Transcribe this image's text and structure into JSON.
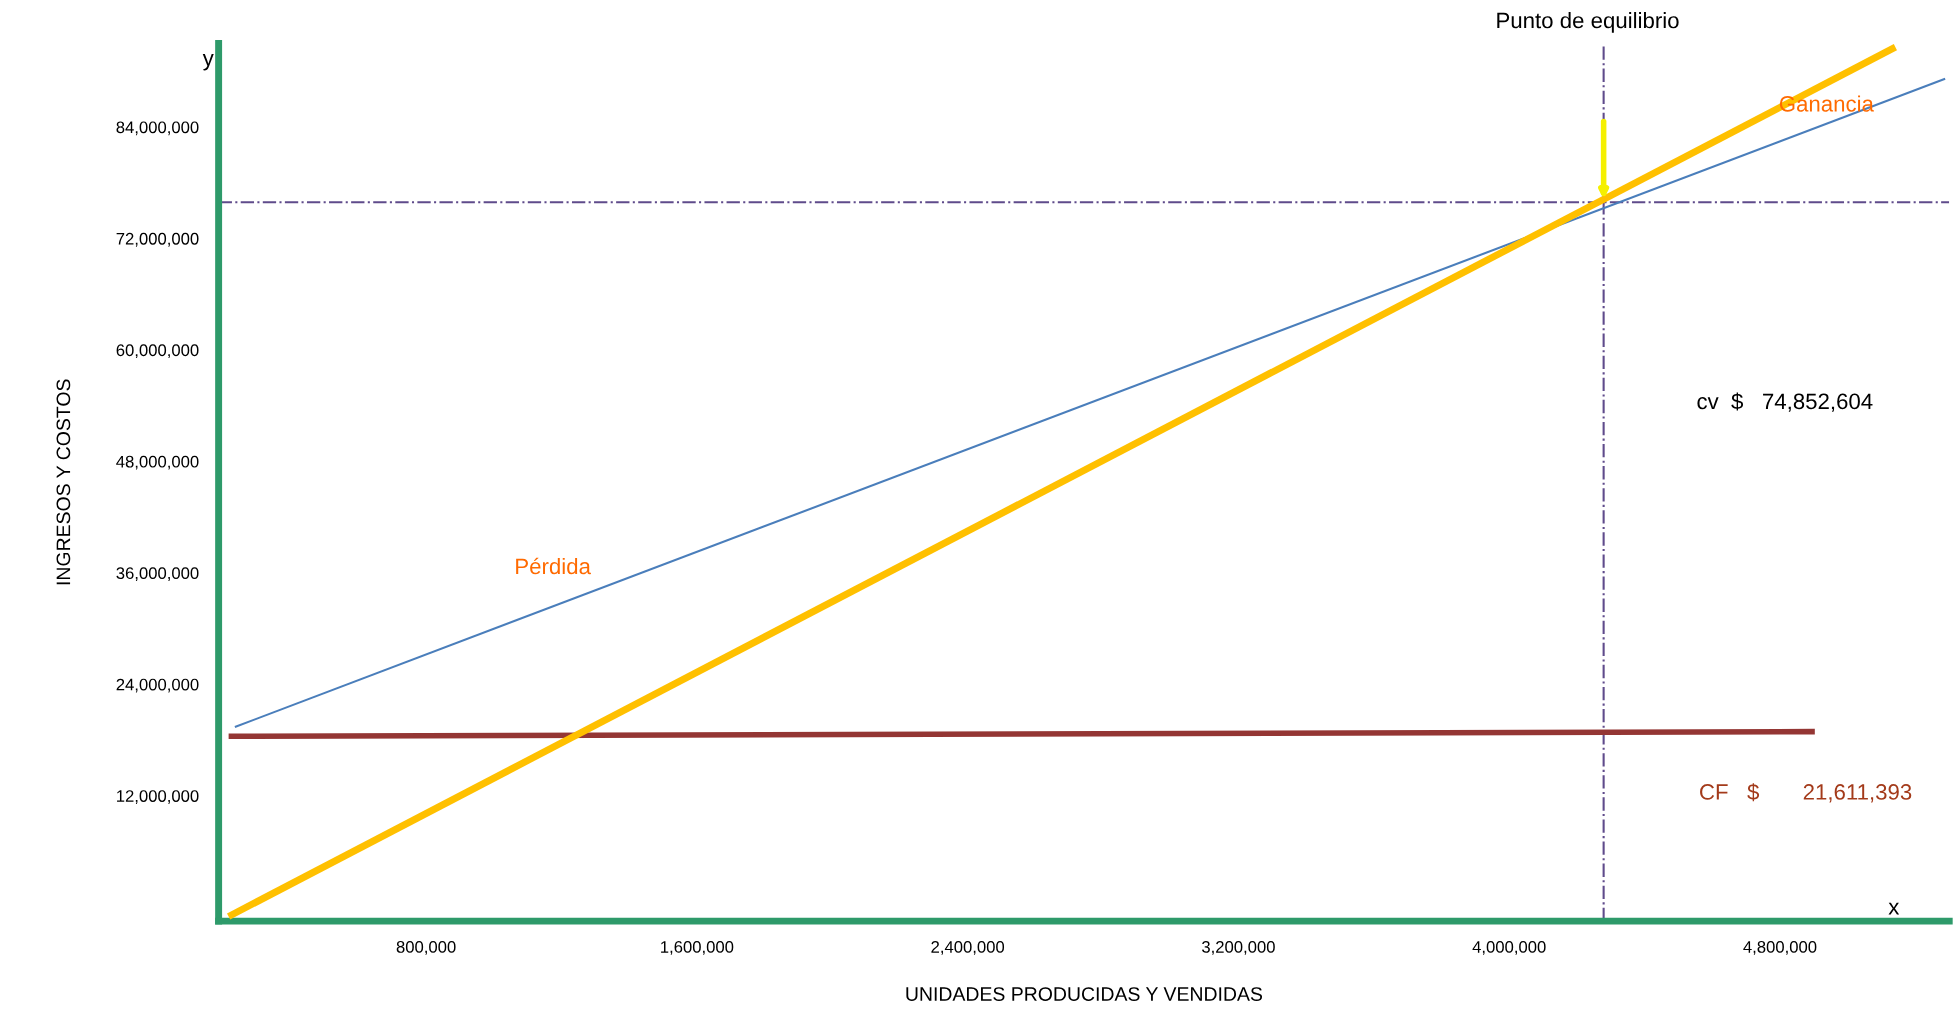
{
  "chart_data": {
    "type": "line",
    "xlabel": "UNIDADES PRODUCIDAS Y VENDIDAS",
    "ylabel": "INGRESOS Y COSTOS",
    "series": [
      {
        "color": "#943634",
        "x": [
          216500,
          4903000
        ],
        "values": [
          18400000,
          18900000
        ]
      },
      {
        "color": "#4a7ebb",
        "x": [
          235000,
          5288000
        ],
        "values": [
          19400000,
          89200000
        ]
      },
      {
        "color": "#ffc000",
        "x": [
          216500,
          5141000
        ],
        "values": [
          -1000000,
          92600000
        ]
      }
    ],
    "xlim": [
      187000,
      5300000
    ],
    "ylim": [
      -1500000,
      93000000
    ],
    "xticks": [
      {
        "value": 800000,
        "label": "800,000"
      },
      {
        "value": 1600000,
        "label": "1,600,000"
      },
      {
        "value": 2400000,
        "label": "2,400,000"
      },
      {
        "value": 3200000,
        "label": "3,200,000"
      },
      {
        "value": 4000000,
        "label": "4,000,000"
      },
      {
        "value": 4800000,
        "label": "4,800,000"
      }
    ],
    "yticks": [
      {
        "value": 12000000,
        "label": "12,000,000"
      },
      {
        "value": 24000000,
        "label": "24,000,000"
      },
      {
        "value": 36000000,
        "label": "36,000,000"
      },
      {
        "value": 48000000,
        "label": "48,000,000"
      },
      {
        "value": 60000000,
        "label": "60,000,000"
      },
      {
        "value": 72000000,
        "label": "72,000,000"
      },
      {
        "value": 84000000,
        "label": "84,000,000"
      }
    ],
    "ref_lines": [
      {
        "axis": "y",
        "value": 75900000,
        "color": "#5f4b8b",
        "line_style": "dashdot"
      },
      {
        "axis": "x",
        "value": 4279000,
        "color": "#5f4b8b",
        "line_style": "dashdot"
      }
    ],
    "annotations": [
      "Pérdida",
      "Ganancia",
      "cv  $   74,852,604",
      "CF   $       21,611,393",
      "x",
      "y",
      "Punto de equilibrio"
    ],
    "grid": false,
    "legend": false
  }
}
